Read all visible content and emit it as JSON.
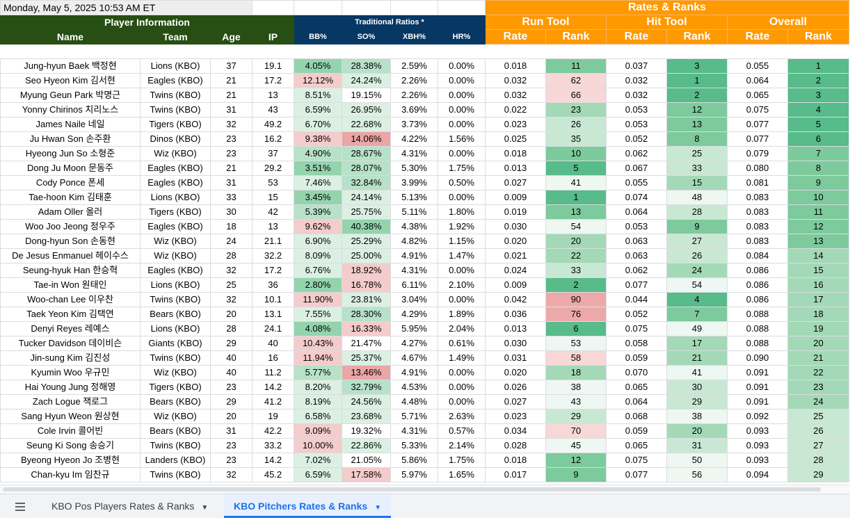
{
  "sheet": {
    "timestamp": "Monday, May 5, 2025 10:53 AM ET",
    "group_headers": {
      "player_info": "Player Information",
      "traditional": "Traditional Ratios *",
      "rates_ranks": "Rates & Ranks",
      "run_tool": "Run Tool",
      "hit_tool": "Hit Tool",
      "overall": "Overall"
    },
    "columns": [
      "Name",
      "Team",
      "Age",
      "IP",
      "BB%",
      "SO%",
      "XBH%",
      "HR%",
      "Rate",
      "Rank",
      "Rate",
      "Rank",
      "Rate",
      "Rank"
    ],
    "rows": [
      [
        "Jung-hyun Baek 백정현",
        "Lions (KBO)",
        "37",
        "19.1",
        "4.05%",
        "28.38%",
        "2.59%",
        "0.00%",
        "0.018",
        "11",
        "0.037",
        "3",
        "0.055",
        "1"
      ],
      [
        "Seo Hyeon Kim 김서현",
        "Eagles (KBO)",
        "21",
        "17.2",
        "12.12%",
        "24.24%",
        "2.26%",
        "0.00%",
        "0.032",
        "62",
        "0.032",
        "1",
        "0.064",
        "2"
      ],
      [
        "Myung Geun Park 박명근",
        "Twins (KBO)",
        "21",
        "13",
        "8.51%",
        "19.15%",
        "2.26%",
        "0.00%",
        "0.032",
        "66",
        "0.032",
        "2",
        "0.065",
        "3"
      ],
      [
        "Yonny Chirinos 치리노스",
        "Twins (KBO)",
        "31",
        "43",
        "6.59%",
        "26.95%",
        "3.69%",
        "0.00%",
        "0.022",
        "23",
        "0.053",
        "12",
        "0.075",
        "4"
      ],
      [
        "James Naile 네일",
        "Tigers (KBO)",
        "32",
        "49.2",
        "6.70%",
        "22.68%",
        "3.73%",
        "0.00%",
        "0.023",
        "26",
        "0.053",
        "13",
        "0.077",
        "5"
      ],
      [
        "Ju Hwan Son 손주환",
        "Dinos (KBO)",
        "23",
        "16.2",
        "9.38%",
        "14.06%",
        "4.22%",
        "1.56%",
        "0.025",
        "35",
        "0.052",
        "8",
        "0.077",
        "6"
      ],
      [
        "Hyeong Jun So 소형준",
        "Wiz (KBO)",
        "23",
        "37",
        "4.90%",
        "28.67%",
        "4.31%",
        "0.00%",
        "0.018",
        "10",
        "0.062",
        "25",
        "0.079",
        "7"
      ],
      [
        "Dong Ju Moon 문동주",
        "Eagles (KBO)",
        "21",
        "29.2",
        "3.51%",
        "28.07%",
        "5.30%",
        "1.75%",
        "0.013",
        "5",
        "0.067",
        "33",
        "0.080",
        "8"
      ],
      [
        "Cody Ponce 폰세",
        "Eagles (KBO)",
        "31",
        "53",
        "7.46%",
        "32.84%",
        "3.99%",
        "0.50%",
        "0.027",
        "41",
        "0.055",
        "15",
        "0.081",
        "9"
      ],
      [
        "Tae-hoon Kim 김태훈",
        "Lions (KBO)",
        "33",
        "15",
        "3.45%",
        "24.14%",
        "5.13%",
        "0.00%",
        "0.009",
        "1",
        "0.074",
        "48",
        "0.083",
        "10"
      ],
      [
        "Adam Oller 올러",
        "Tigers (KBO)",
        "30",
        "42",
        "5.39%",
        "25.75%",
        "5.11%",
        "1.80%",
        "0.019",
        "13",
        "0.064",
        "28",
        "0.083",
        "11"
      ],
      [
        "Woo Joo Jeong 정우주",
        "Eagles (KBO)",
        "18",
        "13",
        "9.62%",
        "40.38%",
        "4.38%",
        "1.92%",
        "0.030",
        "54",
        "0.053",
        "9",
        "0.083",
        "12"
      ],
      [
        "Dong-hyun Son 손동현",
        "Wiz (KBO)",
        "24",
        "21.1",
        "6.90%",
        "25.29%",
        "4.82%",
        "1.15%",
        "0.020",
        "20",
        "0.063",
        "27",
        "0.083",
        "13"
      ],
      [
        "De Jesus Enmanuel 헤이수스",
        "Wiz (KBO)",
        "28",
        "32.2",
        "8.09%",
        "25.00%",
        "4.91%",
        "1.47%",
        "0.021",
        "22",
        "0.063",
        "26",
        "0.084",
        "14"
      ],
      [
        "Seung-hyuk Han 한승혁",
        "Eagles (KBO)",
        "32",
        "17.2",
        "6.76%",
        "18.92%",
        "4.31%",
        "0.00%",
        "0.024",
        "33",
        "0.062",
        "24",
        "0.086",
        "15"
      ],
      [
        "Tae-in Won 원태인",
        "Lions (KBO)",
        "25",
        "36",
        "2.80%",
        "16.78%",
        "6.11%",
        "2.10%",
        "0.009",
        "2",
        "0.077",
        "54",
        "0.086",
        "16"
      ],
      [
        "Woo-chan Lee 이우찬",
        "Twins (KBO)",
        "32",
        "10.1",
        "11.90%",
        "23.81%",
        "3.04%",
        "0.00%",
        "0.042",
        "90",
        "0.044",
        "4",
        "0.086",
        "17"
      ],
      [
        "Taek Yeon Kim 김택연",
        "Bears (KBO)",
        "20",
        "13.1",
        "7.55%",
        "28.30%",
        "4.29%",
        "1.89%",
        "0.036",
        "76",
        "0.052",
        "7",
        "0.088",
        "18"
      ],
      [
        "Denyi Reyes 레예스",
        "Lions (KBO)",
        "28",
        "24.1",
        "4.08%",
        "16.33%",
        "5.95%",
        "2.04%",
        "0.013",
        "6",
        "0.075",
        "49",
        "0.088",
        "19"
      ],
      [
        "Tucker Davidson 데이비슨",
        "Giants (KBO)",
        "29",
        "40",
        "10.43%",
        "21.47%",
        "4.27%",
        "0.61%",
        "0.030",
        "53",
        "0.058",
        "17",
        "0.088",
        "20"
      ],
      [
        "Jin-sung Kim 김진성",
        "Twins (KBO)",
        "40",
        "16",
        "11.94%",
        "25.37%",
        "4.67%",
        "1.49%",
        "0.031",
        "58",
        "0.059",
        "21",
        "0.090",
        "21"
      ],
      [
        "Kyumin Woo 우규민",
        "Wiz (KBO)",
        "40",
        "11.2",
        "5.77%",
        "13.46%",
        "4.91%",
        "0.00%",
        "0.020",
        "18",
        "0.070",
        "41",
        "0.091",
        "22"
      ],
      [
        "Hai Young Jung 정해영",
        "Tigers (KBO)",
        "23",
        "14.2",
        "8.20%",
        "32.79%",
        "4.53%",
        "0.00%",
        "0.026",
        "38",
        "0.065",
        "30",
        "0.091",
        "23"
      ],
      [
        "Zach Logue 잭로그",
        "Bears (KBO)",
        "29",
        "41.2",
        "8.19%",
        "24.56%",
        "4.48%",
        "0.00%",
        "0.027",
        "43",
        "0.064",
        "29",
        "0.091",
        "24"
      ],
      [
        "Sang Hyun Weon 원상현",
        "Wiz (KBO)",
        "20",
        "19",
        "6.58%",
        "23.68%",
        "5.71%",
        "2.63%",
        "0.023",
        "29",
        "0.068",
        "38",
        "0.092",
        "25"
      ],
      [
        "Cole Irvin 콜어빈",
        "Bears (KBO)",
        "31",
        "42.2",
        "9.09%",
        "19.32%",
        "4.31%",
        "0.57%",
        "0.034",
        "70",
        "0.059",
        "20",
        "0.093",
        "26"
      ],
      [
        "Seung Ki Song 송승기",
        "Twins (KBO)",
        "23",
        "33.2",
        "10.00%",
        "22.86%",
        "5.33%",
        "2.14%",
        "0.028",
        "45",
        "0.065",
        "31",
        "0.093",
        "27"
      ],
      [
        "Byeong Hyeon Jo 조병현",
        "Landers (KBO)",
        "23",
        "14.2",
        "7.02%",
        "21.05%",
        "5.86%",
        "1.75%",
        "0.018",
        "12",
        "0.075",
        "50",
        "0.093",
        "28"
      ],
      [
        "Chan-kyu Im 임찬규",
        "Twins (KBO)",
        "32",
        "45.2",
        "6.59%",
        "17.58%",
        "5.97%",
        "1.65%",
        "0.017",
        "9",
        "0.077",
        "56",
        "0.094",
        "29"
      ]
    ]
  },
  "tabs": [
    {
      "label": "KBO Pos Players Rates & Ranks",
      "active": false
    },
    {
      "label": "KBO Pitchers Rates & Ranks",
      "active": true
    }
  ],
  "menu_icon": "hamburger-menu-icon"
}
